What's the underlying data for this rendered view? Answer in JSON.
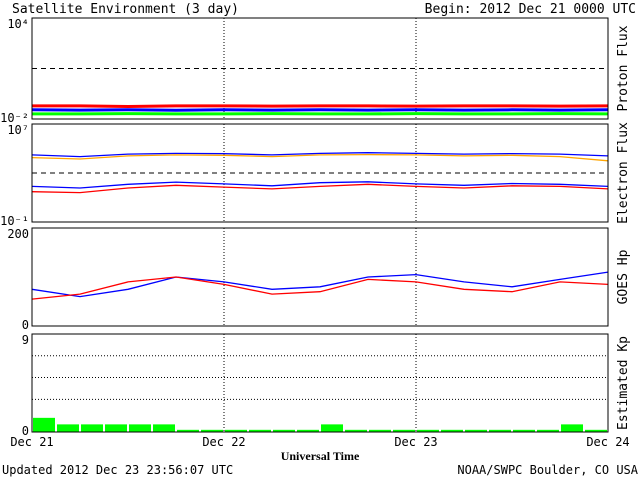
{
  "header": {
    "title": "Satellite Environment (3 day)",
    "begin": "Begin:  2012 Dec 21 0000 UTC"
  },
  "footer": {
    "updated": "Updated 2012 Dec 23 23:56:07 UTC",
    "source": "NOAA/SWPC Boulder, CO USA"
  },
  "x_axis": {
    "label": "Universal Time",
    "ticks": [
      "Dec 21",
      "Dec 22",
      "Dec 23",
      "Dec 24"
    ]
  },
  "colors": {
    "red": "#ff0000",
    "blue": "#0000ff",
    "green": "#00ff00",
    "orange": "#ffa500",
    "frame": "#000000"
  },
  "chart_data": [
    {
      "type": "line",
      "id": "proton",
      "ylabel": "Proton Flux",
      "yscale": "log",
      "ylim": [
        0.01,
        10000
      ],
      "yticks": [
        "10⁴",
        "10⁻²"
      ],
      "threshold": 10,
      "x_days": [
        0,
        0.25,
        0.5,
        0.75,
        1,
        1.25,
        1.5,
        1.75,
        2,
        2.25,
        2.5,
        2.75,
        3
      ],
      "series": [
        {
          "color": "#ff0000",
          "values": [
            0.06,
            0.06,
            0.055,
            0.06,
            0.06,
            0.058,
            0.06,
            0.06,
            0.058,
            0.06,
            0.06,
            0.058,
            0.06
          ]
        },
        {
          "color": "#0000ff",
          "values": [
            0.035,
            0.034,
            0.035,
            0.033,
            0.035,
            0.034,
            0.035,
            0.034,
            0.035,
            0.034,
            0.035,
            0.034,
            0.035
          ]
        },
        {
          "color": "#00ff00",
          "values": [
            0.02,
            0.02,
            0.021,
            0.02,
            0.02,
            0.021,
            0.02,
            0.02,
            0.021,
            0.02,
            0.02,
            0.021,
            0.02
          ]
        }
      ]
    },
    {
      "type": "line",
      "id": "electron",
      "ylabel": "Electron Flux",
      "yscale": "log",
      "ylim": [
        0.1,
        10000000
      ],
      "yticks": [
        "10⁷",
        "10⁻¹"
      ],
      "threshold": 1000,
      "x_days": [
        0,
        0.25,
        0.5,
        0.75,
        1,
        1.25,
        1.5,
        1.75,
        2,
        2.25,
        2.5,
        2.75,
        3
      ],
      "series": [
        {
          "color": "#0000ff",
          "values": [
            30000,
            22000,
            35000,
            40000,
            38000,
            30000,
            40000,
            45000,
            40000,
            35000,
            38000,
            35000,
            25000
          ]
        },
        {
          "color": "#ffa500",
          "values": [
            18000,
            14000,
            25000,
            30000,
            28000,
            22000,
            30000,
            32000,
            30000,
            25000,
            28000,
            22000,
            10000
          ]
        },
        {
          "color": "#0000ff",
          "values": [
            80,
            60,
            120,
            180,
            130,
            90,
            160,
            190,
            130,
            100,
            140,
            120,
            80
          ]
        },
        {
          "color": "#ff0000",
          "values": [
            30,
            25,
            60,
            100,
            70,
            50,
            80,
            120,
            80,
            60,
            90,
            80,
            50
          ]
        }
      ]
    },
    {
      "type": "line",
      "id": "goes-hp",
      "ylabel": "GOES Hp",
      "yscale": "linear",
      "ylim": [
        0,
        200
      ],
      "yticks": [
        "200",
        "0"
      ],
      "x_days": [
        0,
        0.25,
        0.5,
        0.75,
        1,
        1.25,
        1.5,
        1.75,
        2,
        2.25,
        2.5,
        2.75,
        3
      ],
      "series": [
        {
          "color": "#0000ff",
          "values": [
            75,
            60,
            75,
            100,
            90,
            75,
            80,
            100,
            105,
            90,
            80,
            95,
            110
          ]
        },
        {
          "color": "#ff0000",
          "values": [
            55,
            65,
            90,
            100,
            85,
            65,
            70,
            95,
            90,
            75,
            70,
            90,
            85
          ]
        }
      ]
    },
    {
      "type": "bar",
      "id": "kp",
      "ylabel": "Estimated Kp",
      "ylim": [
        0,
        9
      ],
      "yticks": [
        "9",
        "0"
      ],
      "bar_hours": 3,
      "values": [
        1.3,
        0.7,
        0.7,
        0.7,
        0.7,
        0.7,
        0.2,
        0.2,
        0.2,
        0.2,
        0.2,
        0.2,
        0.7,
        0.2,
        0.2,
        0.2,
        0.2,
        0.2,
        0.2,
        0.2,
        0.2,
        0.2,
        0.7,
        0.2
      ],
      "color": "#00ff00"
    }
  ]
}
